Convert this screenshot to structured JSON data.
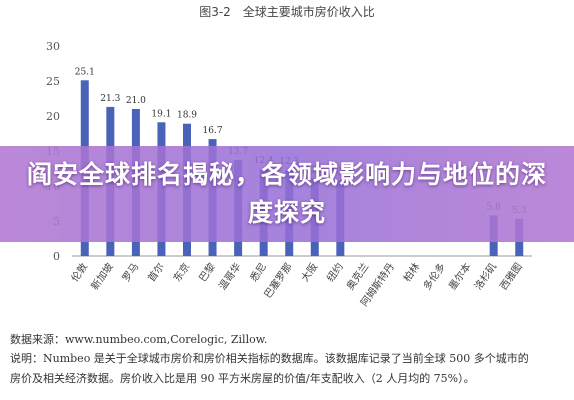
{
  "chart_data": {
    "type": "bar",
    "title": "图3-2　全球主要城市房价收入比",
    "categories": [
      "伦敦",
      "新加坡",
      "罗马",
      "首尔",
      "东京",
      "巴黎",
      "温哥华",
      "悉尼",
      "巴塞罗那",
      "大阪",
      "纽约",
      "奥克兰",
      "阿姆斯特丹",
      "柏林",
      "多伦多",
      "墨尔本",
      "洛杉矶",
      "西雅图"
    ],
    "values": [
      25.1,
      21.3,
      21.0,
      19.1,
      18.9,
      16.7,
      13.7,
      12.4,
      12.3,
      11.1,
      10.8,
      null,
      null,
      null,
      null,
      null,
      5.8,
      5.3
    ],
    "ylim": [
      0,
      30
    ],
    "yticks": [
      0,
      5,
      10,
      15,
      20,
      25,
      30
    ],
    "bar_color": "#4a63b8",
    "grid": false
  },
  "banner": {
    "text": "阎安全球排名揭秘，各领域影响力与地位的深度探究"
  },
  "notes": {
    "source": "数据来源：www.numbeo.com,Corelogic, Zillow.",
    "desc_line1": "说明：Numbeo 是关于全球城市房价和房价相关指标的数据库。该数据库记录了当前全球 500 多个城市的",
    "desc_line2": "房价及相关经济数据。房价收入比是用 90 平方米房屋的价值/年支配收入（2 人月均的 75%）。"
  }
}
